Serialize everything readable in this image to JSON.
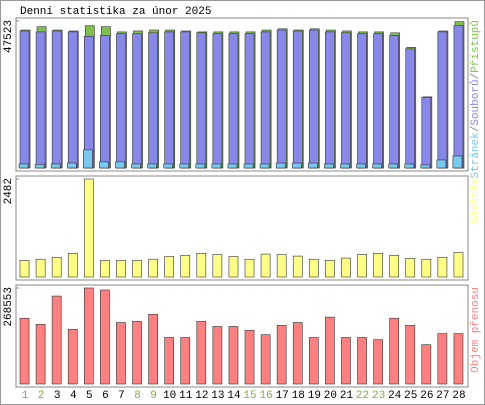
{
  "chart_data": [
    {
      "type": "grouped-bar",
      "title": "Denní statistika za únor 2025",
      "categories": [
        "1",
        "2",
        "3",
        "4",
        "5",
        "6",
        "7",
        "8",
        "9",
        "10",
        "11",
        "12",
        "13",
        "14",
        "15",
        "16",
        "17",
        "18",
        "19",
        "20",
        "21",
        "22",
        "23",
        "24",
        "25",
        "26",
        "27",
        "28"
      ],
      "x_label_colors": [
        "#7ab040",
        "#7ab040",
        "#000000",
        "#000000",
        "#000000",
        "#000000",
        "#000000",
        "#7ab040",
        "#7ab040",
        "#000000",
        "#000000",
        "#000000",
        "#000000",
        "#000000",
        "#7ab040",
        "#7ab040",
        "#000000",
        "#000000",
        "#000000",
        "#000000",
        "#000000",
        "#7ab040",
        "#7ab040",
        "#000000",
        "#000000",
        "#000000",
        "#000000",
        "#000000"
      ],
      "legend_separator": "/",
      "series": [
        {
          "name": "Přístupů",
          "color": "#80c050",
          "values": [
            44600,
            45700,
            44600,
            44300,
            46000,
            45700,
            44000,
            44300,
            44600,
            44600,
            44300,
            44000,
            44000,
            44000,
            44000,
            44600,
            45000,
            44600,
            45000,
            44600,
            44300,
            44000,
            44000,
            43700,
            39000,
            23000,
            44300,
            47300
          ]
        },
        {
          "name": "Souborů",
          "color": "#8888e8",
          "values": [
            44300,
            44000,
            44300,
            44000,
            42600,
            42900,
            43400,
            43400,
            43700,
            44000,
            44000,
            43700,
            43400,
            43400,
            43400,
            44000,
            44600,
            44300,
            44600,
            44000,
            43700,
            43400,
            43400,
            42900,
            38500,
            22800,
            44000,
            46000
          ]
        },
        {
          "name": "Stránek",
          "color": "#78c8f0",
          "values": [
            1300,
            1200,
            1300,
            1600,
            5860,
            2000,
            2000,
            1300,
            1300,
            1300,
            1300,
            1300,
            1300,
            1300,
            1300,
            1300,
            1600,
            1600,
            1600,
            1300,
            1300,
            1300,
            1300,
            1300,
            1300,
            1000,
            2600,
            3900
          ]
        }
      ],
      "ylim": [
        0,
        47523
      ],
      "yticks": [
        47523
      ]
    },
    {
      "type": "bar",
      "series": [
        {
          "name": "Návštěv",
          "color": "#ffff88",
          "values": [
            420,
            450,
            500,
            600,
            2482,
            420,
            420,
            420,
            450,
            520,
            550,
            600,
            570,
            520,
            450,
            580,
            570,
            530,
            450,
            420,
            480,
            570,
            600,
            550,
            470,
            450,
            500,
            620
          ]
        }
      ],
      "ylim": [
        0,
        2482
      ],
      "yticks": [
        2482
      ]
    },
    {
      "type": "bar",
      "series": [
        {
          "name": "Objem přenosu",
          "color": "#ff8080",
          "values": [
            184000,
            167000,
            246000,
            153000,
            268553,
            263000,
            172000,
            175000,
            195000,
            130000,
            130000,
            175000,
            161000,
            161000,
            150000,
            138000,
            164000,
            172000,
            130000,
            187000,
            130000,
            130000,
            124000,
            184000,
            164000,
            110000,
            141000,
            141000
          ]
        }
      ],
      "ylim": [
        0,
        268553
      ],
      "yticks": [
        268553
      ]
    }
  ]
}
